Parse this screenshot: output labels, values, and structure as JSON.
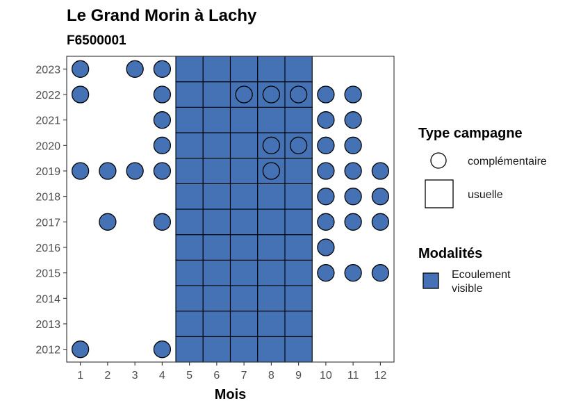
{
  "chart_data": {
    "type": "heatmap",
    "title": "Le Grand Morin à Lachy",
    "subtitle": "F6500001",
    "xlabel": "Mois",
    "ylabel": "",
    "x_categories": [
      "1",
      "2",
      "3",
      "4",
      "5",
      "6",
      "7",
      "8",
      "9",
      "10",
      "11",
      "12"
    ],
    "y_categories": [
      "2012",
      "2013",
      "2014",
      "2015",
      "2016",
      "2017",
      "2018",
      "2019",
      "2020",
      "2021",
      "2022",
      "2023"
    ],
    "grid": false,
    "fill_color": "#4472b4",
    "legend_type": {
      "title": "Type campagne",
      "position": "right",
      "items": [
        {
          "shape": "circle",
          "label": "complémentaire"
        },
        {
          "shape": "square",
          "label": "usuelle"
        }
      ]
    },
    "legend_modalites": {
      "title": "Modalités",
      "position": "right",
      "items": [
        {
          "color": "#4472b4",
          "label_lines": [
            "Ecoulement",
            "visible"
          ]
        }
      ]
    },
    "usuelle_months": [
      "5",
      "6",
      "7",
      "8",
      "9"
    ],
    "usuelle_years": [
      "2012",
      "2013",
      "2014",
      "2015",
      "2016",
      "2017",
      "2018",
      "2019",
      "2020",
      "2021",
      "2022",
      "2023"
    ],
    "complementaire": [
      {
        "year": "2023",
        "month": "1",
        "modalite": "Ecoulement visible"
      },
      {
        "year": "2023",
        "month": "3",
        "modalite": "Ecoulement visible"
      },
      {
        "year": "2023",
        "month": "4",
        "modalite": "Ecoulement visible"
      },
      {
        "year": "2022",
        "month": "1",
        "modalite": "Ecoulement visible"
      },
      {
        "year": "2022",
        "month": "4",
        "modalite": "Ecoulement visible"
      },
      {
        "year": "2022",
        "month": "7",
        "modalite": "Ecoulement visible"
      },
      {
        "year": "2022",
        "month": "8",
        "modalite": "Ecoulement visible"
      },
      {
        "year": "2022",
        "month": "9",
        "modalite": "Ecoulement visible"
      },
      {
        "year": "2022",
        "month": "10",
        "modalite": "Ecoulement visible"
      },
      {
        "year": "2022",
        "month": "11",
        "modalite": "Ecoulement visible"
      },
      {
        "year": "2021",
        "month": "4",
        "modalite": "Ecoulement visible"
      },
      {
        "year": "2021",
        "month": "10",
        "modalite": "Ecoulement visible"
      },
      {
        "year": "2021",
        "month": "11",
        "modalite": "Ecoulement visible"
      },
      {
        "year": "2020",
        "month": "4",
        "modalite": "Ecoulement visible"
      },
      {
        "year": "2020",
        "month": "8",
        "modalite": "Ecoulement visible"
      },
      {
        "year": "2020",
        "month": "9",
        "modalite": "Ecoulement visible"
      },
      {
        "year": "2020",
        "month": "10",
        "modalite": "Ecoulement visible"
      },
      {
        "year": "2020",
        "month": "11",
        "modalite": "Ecoulement visible"
      },
      {
        "year": "2019",
        "month": "1",
        "modalite": "Ecoulement visible"
      },
      {
        "year": "2019",
        "month": "2",
        "modalite": "Ecoulement visible"
      },
      {
        "year": "2019",
        "month": "3",
        "modalite": "Ecoulement visible"
      },
      {
        "year": "2019",
        "month": "4",
        "modalite": "Ecoulement visible"
      },
      {
        "year": "2019",
        "month": "8",
        "modalite": "Ecoulement visible"
      },
      {
        "year": "2019",
        "month": "10",
        "modalite": "Ecoulement visible"
      },
      {
        "year": "2019",
        "month": "11",
        "modalite": "Ecoulement visible"
      },
      {
        "year": "2019",
        "month": "12",
        "modalite": "Ecoulement visible"
      },
      {
        "year": "2018",
        "month": "10",
        "modalite": "Ecoulement visible"
      },
      {
        "year": "2018",
        "month": "11",
        "modalite": "Ecoulement visible"
      },
      {
        "year": "2018",
        "month": "12",
        "modalite": "Ecoulement visible"
      },
      {
        "year": "2017",
        "month": "2",
        "modalite": "Ecoulement visible"
      },
      {
        "year": "2017",
        "month": "4",
        "modalite": "Ecoulement visible"
      },
      {
        "year": "2017",
        "month": "10",
        "modalite": "Ecoulement visible"
      },
      {
        "year": "2017",
        "month": "11",
        "modalite": "Ecoulement visible"
      },
      {
        "year": "2017",
        "month": "12",
        "modalite": "Ecoulement visible"
      },
      {
        "year": "2016",
        "month": "10",
        "modalite": "Ecoulement visible"
      },
      {
        "year": "2015",
        "month": "10",
        "modalite": "Ecoulement visible"
      },
      {
        "year": "2015",
        "month": "11",
        "modalite": "Ecoulement visible"
      },
      {
        "year": "2015",
        "month": "12",
        "modalite": "Ecoulement visible"
      },
      {
        "year": "2012",
        "month": "1",
        "modalite": "Ecoulement visible"
      },
      {
        "year": "2012",
        "month": "4",
        "modalite": "Ecoulement visible"
      }
    ]
  }
}
